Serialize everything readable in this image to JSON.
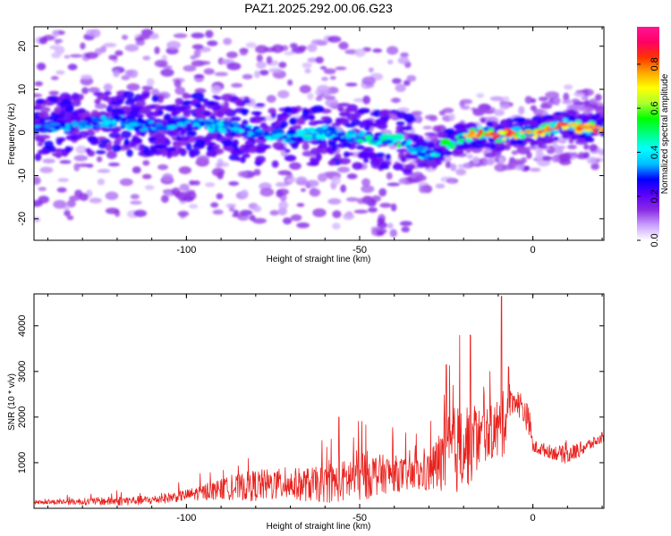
{
  "title": "PAZ1.2025.292.00.06.G23",
  "chart_data": [
    {
      "type": "heatmap",
      "name": "spectrogram",
      "xlabel": "Height of straight line (km)",
      "ylabel": "Frequency (Hz)",
      "xlim": [
        -144,
        20.5
      ],
      "ylim": [
        -25,
        24.5
      ],
      "xticks": [
        -100,
        -50,
        0
      ],
      "yticks": [
        -20,
        -10,
        0,
        10,
        20
      ],
      "colorbar": {
        "label": "Normalized spectral amplitude",
        "range": [
          0,
          0.97
        ],
        "ticks": [
          "0.0",
          "0.2",
          "0.4",
          "0.6",
          "0.8"
        ],
        "tick_values": [
          0.0,
          0.2,
          0.4,
          0.6,
          0.8
        ],
        "colors": [
          "#ffffff",
          "#c9a0ff",
          "#8a2be2",
          "#5a00ff",
          "#0000ff",
          "#00bfff",
          "#00ffff",
          "#00ff7f",
          "#00ff00",
          "#adff2f",
          "#ffff00",
          "#ffa500",
          "#ff3300",
          "#ff0066",
          "#ff1493"
        ]
      },
      "ridge": {
        "x": [
          -144,
          -130,
          -120,
          -110,
          -100,
          -90,
          -80,
          -70,
          -60,
          -50,
          -45,
          -40,
          -35,
          -32,
          -30,
          -25,
          -20,
          -15,
          -10,
          -5,
          0,
          5,
          10,
          15,
          20
        ],
        "y": [
          1,
          2,
          2.5,
          1.5,
          2,
          1.5,
          0,
          -1,
          0,
          -1,
          -1.5,
          -1.5,
          -3,
          -5,
          -5.5,
          -3,
          -1,
          0,
          -1,
          0,
          0,
          1,
          2,
          1,
          1
        ],
        "amp": [
          0.3,
          0.3,
          0.35,
          0.3,
          0.35,
          0.4,
          0.35,
          0.4,
          0.4,
          0.45,
          0.45,
          0.5,
          0.4,
          0.35,
          0.45,
          0.55,
          0.6,
          0.8,
          0.75,
          0.8,
          0.7,
          0.65,
          0.65,
          0.7,
          0.9
        ]
      }
    },
    {
      "type": "line",
      "name": "snr",
      "xlabel": "Height of straight line (km)",
      "ylabel": "SNR (10 * v/v)",
      "xlim": [
        -144,
        20.5
      ],
      "ylim": [
        0,
        4700
      ],
      "xticks": [
        -100,
        -50,
        0
      ],
      "yticks": [
        1000,
        2000,
        3000,
        4000
      ],
      "color": "#e8231f",
      "envelope": {
        "x": [
          -144,
          -120,
          -110,
          -100,
          -90,
          -80,
          -70,
          -60,
          -55,
          -50,
          -45,
          -40,
          -35,
          -30,
          -25,
          -22,
          -20,
          -17,
          -15,
          -12,
          -10,
          -9,
          -7,
          -5,
          -3,
          -1,
          0,
          5,
          10,
          15,
          20
        ],
        "base": [
          120,
          130,
          150,
          250,
          350,
          400,
          420,
          400,
          450,
          550,
          600,
          650,
          600,
          650,
          900,
          1000,
          1100,
          1200,
          1400,
          1500,
          1500,
          1400,
          2200,
          2300,
          2100,
          1800,
          1300,
          1200,
          1100,
          1300,
          1500
        ],
        "amp": [
          80,
          200,
          200,
          250,
          450,
          700,
          700,
          800,
          900,
          1200,
          900,
          800,
          700,
          900,
          1700,
          2000,
          2000,
          1800,
          1200,
          1200,
          1500,
          1800,
          600,
          500,
          700,
          600,
          300,
          300,
          400,
          300,
          200
        ]
      },
      "peaks": [
        {
          "x": -9,
          "y": 4650
        },
        {
          "x": -18,
          "y": 3800
        },
        {
          "x": -25,
          "y": 3150
        },
        {
          "x": -7,
          "y": 3100
        },
        {
          "x": -56,
          "y": 2000
        }
      ]
    }
  ]
}
